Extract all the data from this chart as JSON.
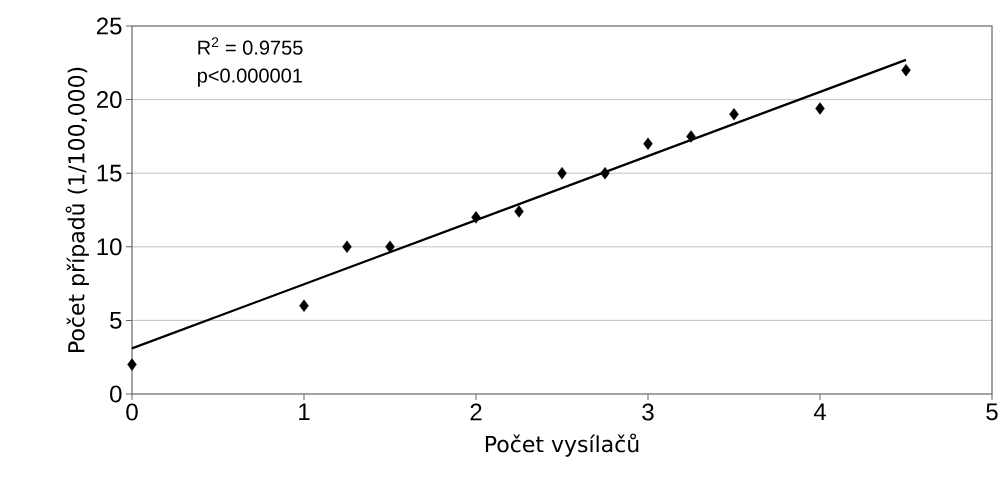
{
  "chart_data": {
    "type": "scatter",
    "xlabel": "Počet vysílačů",
    "ylabel": "Počet případů (1/100,000)",
    "annotations": [
      "R$^{2}$ = 0.9755",
      "p<0.000001"
    ],
    "xlim": [
      0,
      5
    ],
    "ylim": [
      0,
      25
    ],
    "xticks": [
      0,
      1,
      2,
      3,
      4,
      5
    ],
    "yticks": [
      0,
      5,
      10,
      15,
      20,
      25
    ],
    "grid": "y",
    "series": [
      {
        "color": "#000000",
        "marker": "diamond",
        "x": [
          0,
          1,
          1.25,
          1.5,
          2,
          2.25,
          2.5,
          2.75,
          3,
          3.25,
          3.5,
          4,
          4.5
        ],
        "values": [
          2,
          6,
          10,
          10,
          12,
          12.4,
          15,
          15,
          17,
          17.5,
          19,
          19.4,
          22
        ]
      },
      {
        "type": "line",
        "color": "#000000",
        "marker": "none",
        "line_style": "solid",
        "x": [
          0,
          4.5
        ],
        "values": [
          3.1,
          22.7
        ]
      }
    ]
  }
}
